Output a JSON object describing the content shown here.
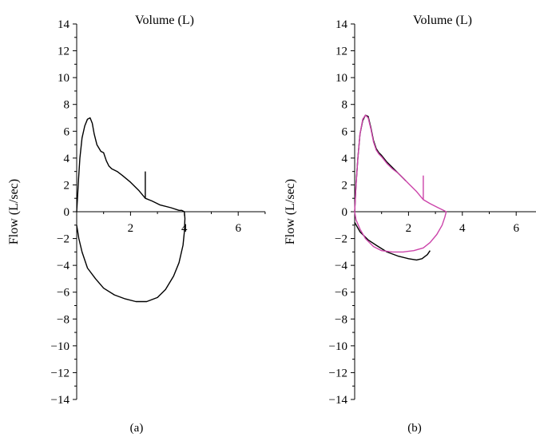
{
  "chart_data": [
    {
      "type": "line",
      "panel_label": "(a)",
      "xlabel": "Volume (L)",
      "ylabel": "Flow (L/sec)",
      "xlim": [
        0,
        7
      ],
      "ylim": [
        -14,
        14
      ],
      "x_ticks": [
        0,
        2,
        4,
        6
      ],
      "x_tick_labels": [
        "2",
        "4",
        "6"
      ],
      "y_ticks": [
        14,
        12,
        10,
        8,
        6,
        4,
        2,
        0,
        -2,
        -4,
        -6,
        -8,
        -10,
        -12,
        -14
      ],
      "y_tick_labels": [
        "14",
        "12",
        "10",
        "8",
        "6",
        "4",
        "2",
        "0",
        "−2",
        "−4",
        "−6",
        "−8",
        "−10",
        "−12",
        "−14"
      ],
      "grid": false,
      "series": [
        {
          "color": "#000000",
          "points": [
            [
              0,
              0
            ],
            [
              0.03,
              1
            ],
            [
              0.07,
              2.5
            ],
            [
              0.12,
              4
            ],
            [
              0.2,
              5.5
            ],
            [
              0.3,
              6.4
            ],
            [
              0.4,
              6.9
            ],
            [
              0.5,
              7.0
            ],
            [
              0.58,
              6.6
            ],
            [
              0.65,
              5.8
            ],
            [
              0.75,
              5.0
            ],
            [
              0.9,
              4.5
            ],
            [
              1.0,
              4.4
            ],
            [
              1.1,
              3.8
            ],
            [
              1.2,
              3.4
            ],
            [
              1.3,
              3.2
            ],
            [
              1.5,
              3.0
            ],
            [
              1.7,
              2.7
            ],
            [
              2.0,
              2.2
            ],
            [
              2.3,
              1.6
            ],
            [
              2.55,
              1.0
            ],
            [
              2.8,
              0.8
            ],
            [
              3.1,
              0.5
            ],
            [
              3.5,
              0.3
            ],
            [
              3.8,
              0.1
            ],
            [
              3.9,
              0.1
            ],
            [
              4.0,
              0.0
            ],
            [
              4.02,
              -0.5
            ],
            [
              4.0,
              -1.5
            ],
            [
              3.95,
              -2.5
            ],
            [
              3.8,
              -3.8
            ],
            [
              3.6,
              -4.8
            ],
            [
              3.3,
              -5.8
            ],
            [
              3.0,
              -6.4
            ],
            [
              2.6,
              -6.7
            ],
            [
              2.2,
              -6.7
            ],
            [
              1.8,
              -6.5
            ],
            [
              1.4,
              -6.2
            ],
            [
              1.0,
              -5.7
            ],
            [
              0.7,
              -5.0
            ],
            [
              0.4,
              -4.2
            ],
            [
              0.2,
              -3.0
            ],
            [
              0.08,
              -2.0
            ],
            [
              0.0,
              -1.0
            ]
          ]
        },
        {
          "color": "#000000",
          "points": [
            [
              2.55,
              3.0
            ],
            [
              2.55,
              1.0
            ]
          ]
        }
      ]
    },
    {
      "type": "line",
      "panel_label": "(b)",
      "xlabel": "Volume (L)",
      "ylabel": "Flow (L/sec)",
      "xlim": [
        0,
        7
      ],
      "ylim": [
        -14,
        14
      ],
      "x_ticks": [
        0,
        2,
        4,
        6
      ],
      "x_tick_labels": [
        "2",
        "4",
        "6"
      ],
      "y_ticks": [
        14,
        12,
        10,
        8,
        6,
        4,
        2,
        0,
        -2,
        -4,
        -6,
        -8,
        -10,
        -12,
        -14
      ],
      "y_tick_labels": [
        "14",
        "12",
        "10",
        "8",
        "6",
        "4",
        "2",
        "0",
        "−2",
        "−4",
        "−6",
        "−8",
        "−10",
        "−12",
        "−14"
      ],
      "grid": false,
      "series": [
        {
          "color": "#000000",
          "points": [
            [
              0,
              0
            ],
            [
              0.05,
              2
            ],
            [
              0.12,
              4
            ],
            [
              0.2,
              5.8
            ],
            [
              0.3,
              6.8
            ],
            [
              0.4,
              7.2
            ],
            [
              0.5,
              7.1
            ],
            [
              0.6,
              6.3
            ],
            [
              0.7,
              5.3
            ],
            [
              0.8,
              4.7
            ],
            [
              0.9,
              4.4
            ],
            [
              1.0,
              4.2
            ],
            [
              1.2,
              3.7
            ],
            [
              1.4,
              3.3
            ],
            [
              1.6,
              2.9
            ],
            [
              1.8,
              2.5
            ],
            [
              1.9,
              2.3
            ]
          ]
        },
        {
          "color": "#000000",
          "points": [
            [
              0,
              -0.8
            ],
            [
              0.2,
              -1.5
            ],
            [
              0.5,
              -2.1
            ],
            [
              0.8,
              -2.5
            ],
            [
              1.2,
              -3.0
            ],
            [
              1.6,
              -3.3
            ],
            [
              2.0,
              -3.5
            ],
            [
              2.3,
              -3.6
            ],
            [
              2.5,
              -3.5
            ],
            [
              2.7,
              -3.2
            ],
            [
              2.8,
              -2.9
            ]
          ]
        },
        {
          "color": "#cc44aa",
          "points": [
            [
              0,
              0
            ],
            [
              0.05,
              2
            ],
            [
              0.12,
              4
            ],
            [
              0.2,
              5.8
            ],
            [
              0.3,
              6.9
            ],
            [
              0.4,
              7.2
            ],
            [
              0.5,
              7.0
            ],
            [
              0.6,
              6.2
            ],
            [
              0.7,
              5.2
            ],
            [
              0.8,
              4.6
            ],
            [
              0.9,
              4.3
            ],
            [
              1.0,
              4.1
            ],
            [
              1.2,
              3.6
            ],
            [
              1.4,
              3.2
            ],
            [
              1.6,
              2.9
            ],
            [
              1.8,
              2.5
            ],
            [
              2.0,
              2.1
            ],
            [
              2.3,
              1.5
            ],
            [
              2.55,
              0.9
            ],
            [
              2.8,
              0.6
            ],
            [
              3.1,
              0.3
            ],
            [
              3.3,
              0.1
            ],
            [
              3.4,
              0.0
            ],
            [
              3.35,
              -0.4
            ],
            [
              3.25,
              -1.0
            ],
            [
              3.05,
              -1.7
            ],
            [
              2.8,
              -2.3
            ],
            [
              2.55,
              -2.7
            ],
            [
              2.2,
              -2.9
            ],
            [
              1.8,
              -3.0
            ],
            [
              1.4,
              -3.0
            ],
            [
              1.0,
              -2.9
            ],
            [
              0.7,
              -2.6
            ],
            [
              0.4,
              -2.0
            ],
            [
              0.2,
              -1.3
            ],
            [
              0.05,
              -0.6
            ],
            [
              0,
              0
            ]
          ]
        },
        {
          "color": "#cc44aa",
          "points": [
            [
              2.55,
              2.7
            ],
            [
              2.55,
              0.9
            ]
          ]
        }
      ]
    }
  ]
}
